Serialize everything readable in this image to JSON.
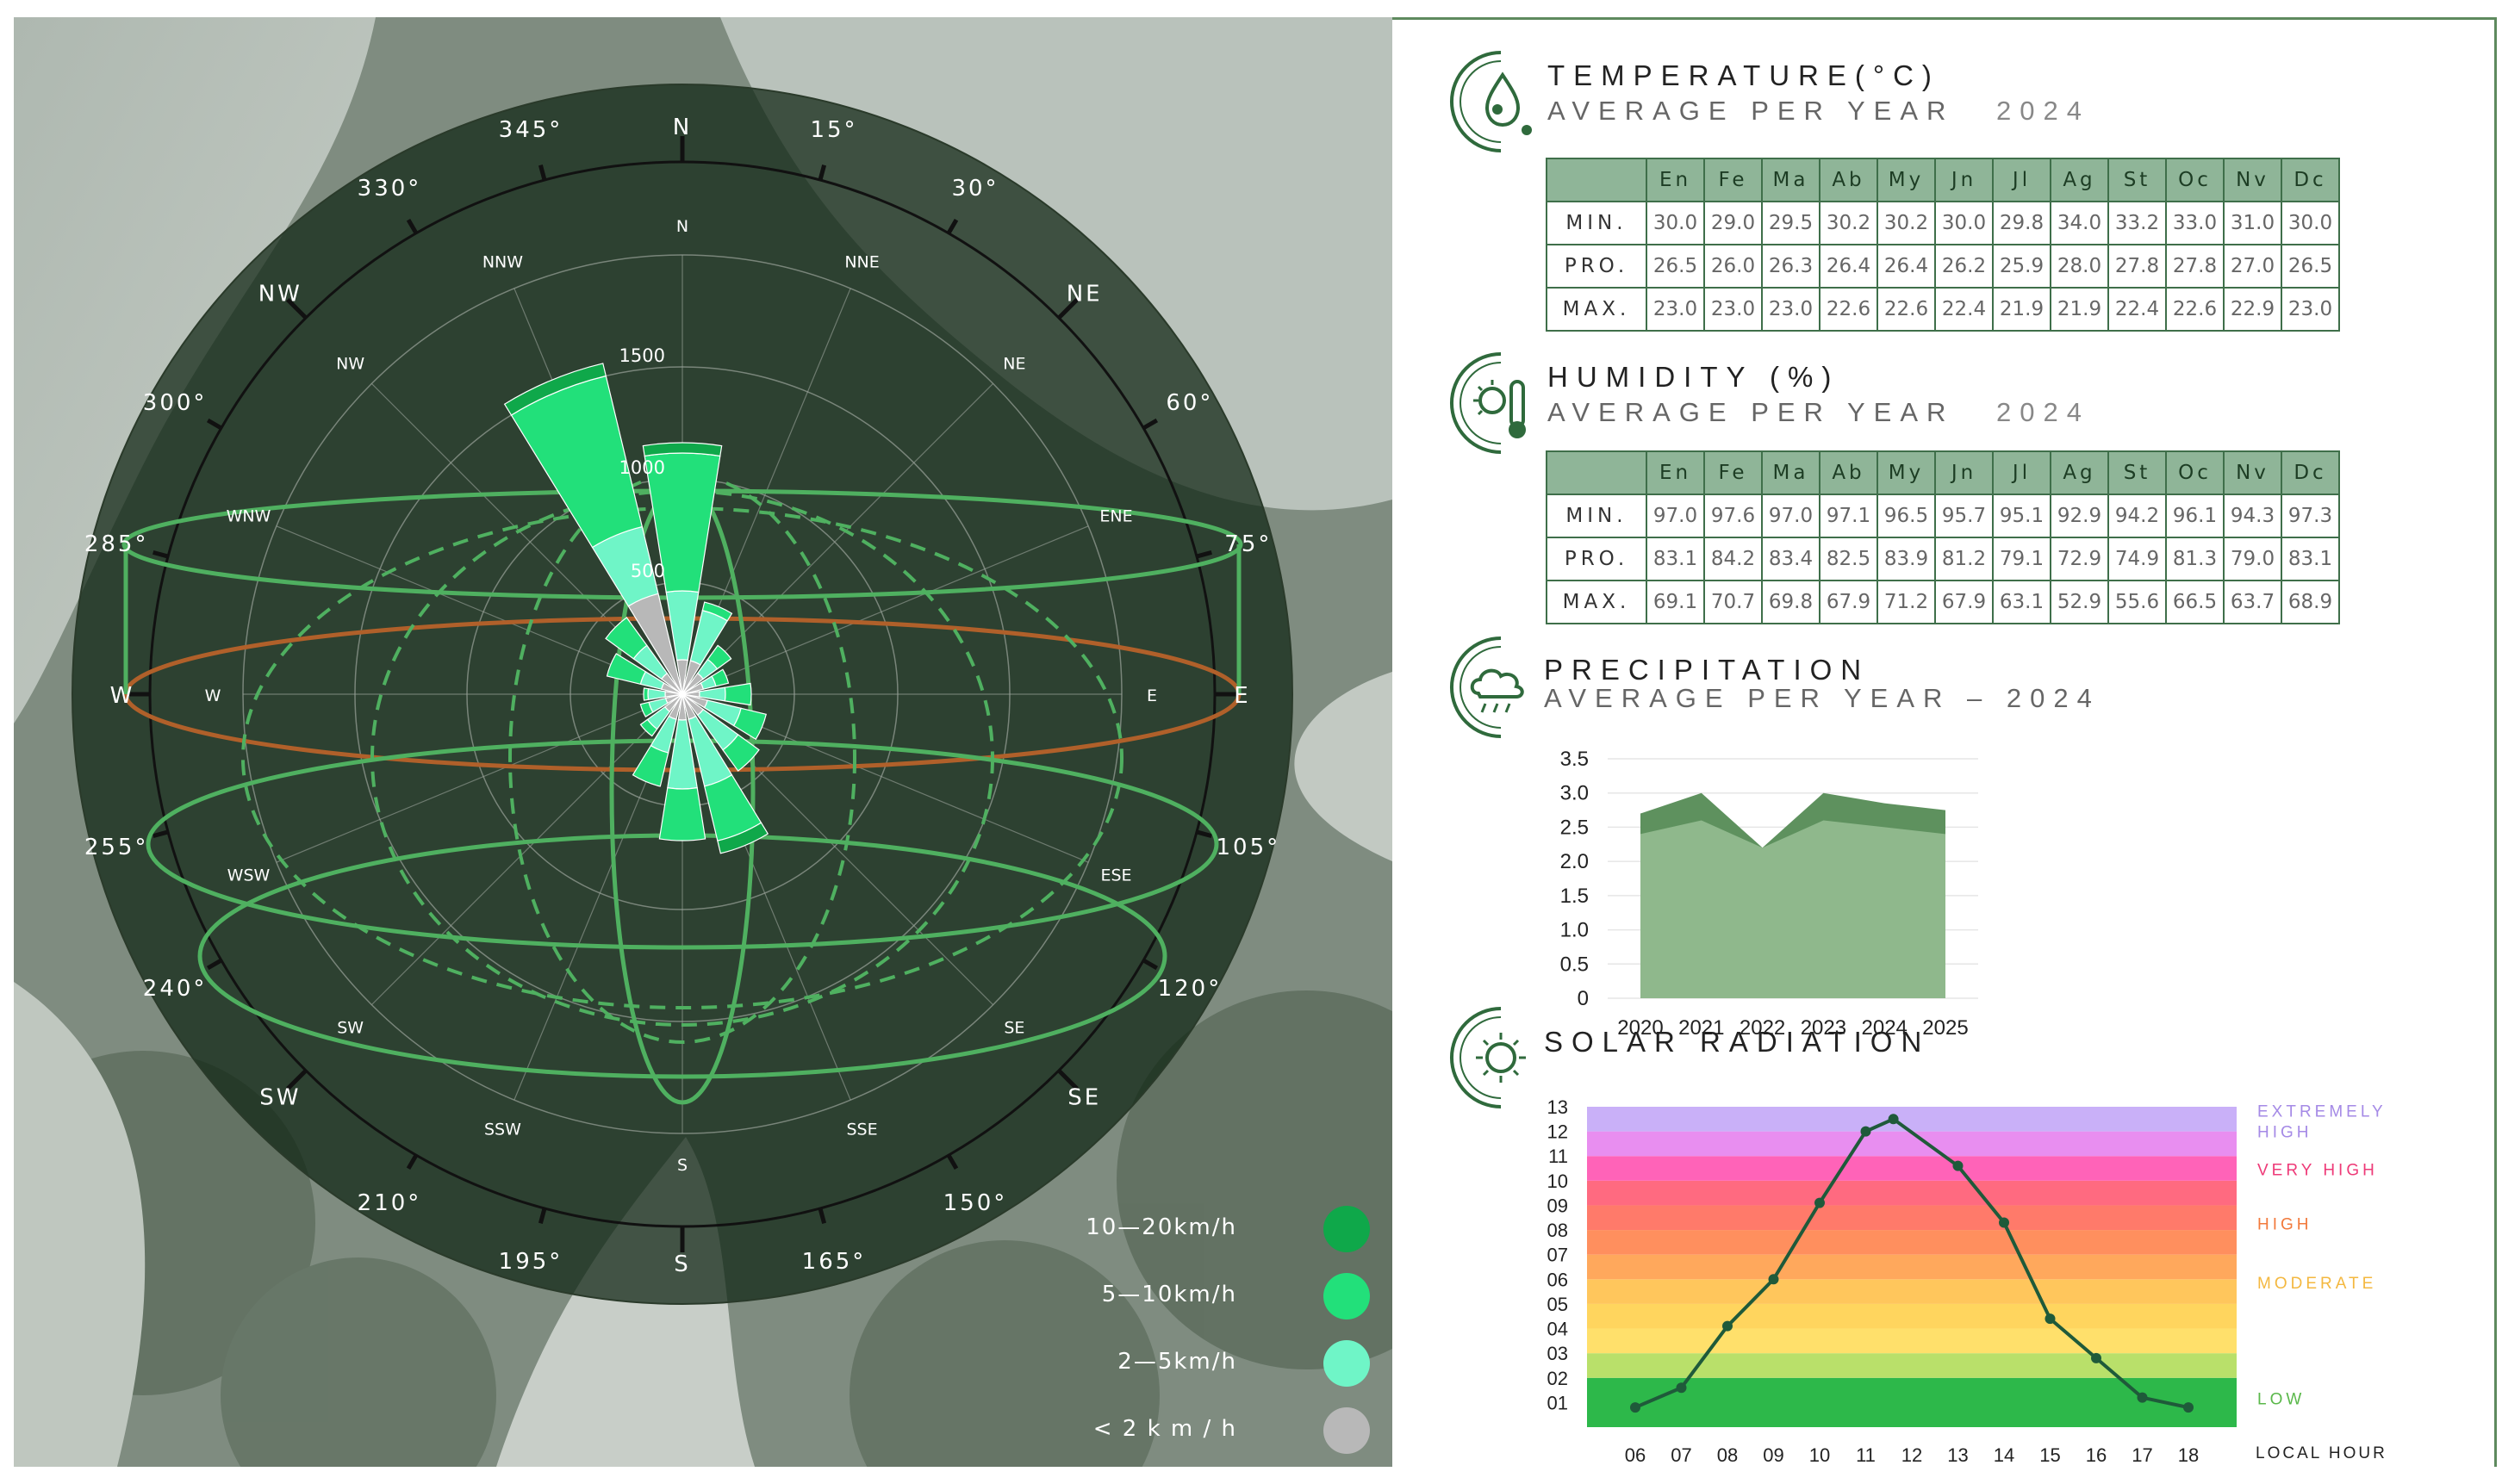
{
  "wind_rose": {
    "degree_labels": [
      "345°",
      "15°",
      "330°",
      "30°",
      "300°",
      "60°",
      "285°",
      "75°",
      "255°",
      "105°",
      "240°",
      "120°",
      "210°",
      "150°",
      "195°",
      "165°"
    ],
    "outer_dirs": {
      "N": "N",
      "NE": "NE",
      "E": "E",
      "SE": "SE",
      "S": "S",
      "SW": "SW",
      "W": "W",
      "NW": "NW"
    },
    "inner_dirs": [
      "N",
      "NNE",
      "NE",
      "ENE",
      "E",
      "ESE",
      "SE",
      "SSE",
      "S",
      "SSW",
      "SW",
      "WSW",
      "W",
      "WNW",
      "NW",
      "NNW"
    ],
    "rings": [
      "1500",
      "1000",
      "500"
    ],
    "legend": [
      {
        "label": "10—20km/h",
        "color": "#0fa84a"
      },
      {
        "label": "5—10km/h",
        "color": "#22e07a"
      },
      {
        "label": "2—5km/h",
        "color": "#6ff5c7"
      },
      {
        "label": "< 2 k m / h",
        "color": "#b8b8b8"
      }
    ]
  },
  "temperature": {
    "title": "TEMPERATURE(°C)",
    "subtitle": "AVERAGE PER YEAR",
    "year": "2024",
    "months": [
      "En",
      "Fe",
      "Ma",
      "Ab",
      "My",
      "Jn",
      "Jl",
      "Ag",
      "St",
      "Oc",
      "Nv",
      "Dc"
    ],
    "rows": [
      {
        "label": "MIN.",
        "values": [
          "30.0",
          "29.0",
          "29.5",
          "30.2",
          "30.2",
          "30.0",
          "29.8",
          "34.0",
          "33.2",
          "33.0",
          "31.0",
          "30.0"
        ]
      },
      {
        "label": "PRO.",
        "values": [
          "26.5",
          "26.0",
          "26.3",
          "26.4",
          "26.4",
          "26.2",
          "25.9",
          "28.0",
          "27.8",
          "27.8",
          "27.0",
          "26.5"
        ]
      },
      {
        "label": "MAX.",
        "values": [
          "23.0",
          "23.0",
          "23.0",
          "22.6",
          "22.6",
          "22.4",
          "21.9",
          "21.9",
          "22.4",
          "22.6",
          "22.9",
          "23.0"
        ]
      }
    ]
  },
  "humidity": {
    "title": "HUMIDITY (%)",
    "subtitle": "AVERAGE PER YEAR",
    "year": "2024",
    "months": [
      "En",
      "Fe",
      "Ma",
      "Ab",
      "My",
      "Jn",
      "Jl",
      "Ag",
      "St",
      "Oc",
      "Nv",
      "Dc"
    ],
    "rows": [
      {
        "label": "MIN.",
        "values": [
          "97.0",
          "97.6",
          "97.0",
          "97.1",
          "96.5",
          "95.7",
          "95.1",
          "92.9",
          "94.2",
          "96.1",
          "94.3",
          "97.3"
        ]
      },
      {
        "label": "PRO.",
        "values": [
          "83.1",
          "84.2",
          "83.4",
          "82.5",
          "83.9",
          "81.2",
          "79.1",
          "72.9",
          "74.9",
          "81.3",
          "79.0",
          "83.1"
        ]
      },
      {
        "label": "MAX.",
        "values": [
          "69.1",
          "70.7",
          "69.8",
          "67.9",
          "71.2",
          "67.9",
          "63.1",
          "52.9",
          "55.6",
          "66.5",
          "63.7",
          "68.9"
        ]
      }
    ]
  },
  "precipitation": {
    "title": "PRECIPITATION",
    "subtitle": "AVERAGE PER YEAR – 2024"
  },
  "solar": {
    "title": "SOLAR RADIATION",
    "x_axis_title": "LOCAL HOUR",
    "bands": [
      {
        "label": "EXTREMELY HIGH",
        "color": "#b79cf2",
        "text_color": "#a58ae6"
      },
      {
        "label": "VERY HIGH",
        "color": "#ff63b8",
        "text_color": "#ee3a78"
      },
      {
        "label": "HIGH",
        "color": "#ff8f5e",
        "text_color": "#f27a3c"
      },
      {
        "label": "MODERATE",
        "color": "#ffc65c",
        "text_color": "#f4b840"
      },
      {
        "label": "LOW",
        "color": "#b9e06a",
        "text_color": "#5ab84a"
      }
    ]
  },
  "chart_data": [
    {
      "type": "area",
      "title": "PRECIPITATION",
      "x": [
        "2020",
        "2021",
        "2022",
        "2023",
        "2024",
        "2025"
      ],
      "series": [
        {
          "values": [
            2.7,
            3.0,
            2.2,
            3.0,
            2.85,
            2.75
          ]
        },
        {
          "values": [
            2.4,
            2.6,
            2.2,
            2.6,
            2.5,
            2.4
          ]
        }
      ],
      "yticks": [
        "0",
        "0.5",
        "1.0",
        "1.5",
        "2.0",
        "2.5",
        "3.0",
        "3.5"
      ],
      "ylim": [
        0,
        3.5
      ],
      "grid": true,
      "colors": [
        "#5e915e",
        "#8fb88c"
      ]
    },
    {
      "type": "line",
      "title": "SOLAR RADIATION",
      "x": [
        "06",
        "07",
        "08",
        "09",
        "10",
        "11",
        "12",
        "13",
        "14",
        "15",
        "16",
        "17",
        "18"
      ],
      "series": [
        {
          "values": [
            0.8,
            1.6,
            4.1,
            6.0,
            9.1,
            12.0,
            12.5,
            10.6,
            8.3,
            4.4,
            2.8,
            1.2,
            0.8
          ],
          "x_positions": [
            6,
            7,
            8,
            9,
            10,
            11,
            11.6,
            13,
            14,
            15,
            16,
            17,
            18
          ]
        }
      ],
      "yticks": [
        "01",
        "02",
        "03",
        "04",
        "05",
        "06",
        "07",
        "08",
        "09",
        "10",
        "11",
        "12",
        "13"
      ],
      "ylim": [
        0,
        13
      ],
      "xlabel": "LOCAL HOUR",
      "band_edges": [
        0,
        2,
        3,
        4,
        5,
        6,
        7,
        8,
        9,
        10,
        11,
        12,
        13
      ],
      "band_colors": [
        "#2db84a",
        "#b9e06a",
        "#ffe06b",
        "#ffd55e",
        "#ffc65c",
        "#ffa85c",
        "#ff8f5e",
        "#ff7a6a",
        "#ff6a80",
        "#ff63b8",
        "#e88ef0",
        "#c9b0f8",
        "#b79cf2"
      ],
      "line_color": "#1f5a3a"
    }
  ]
}
